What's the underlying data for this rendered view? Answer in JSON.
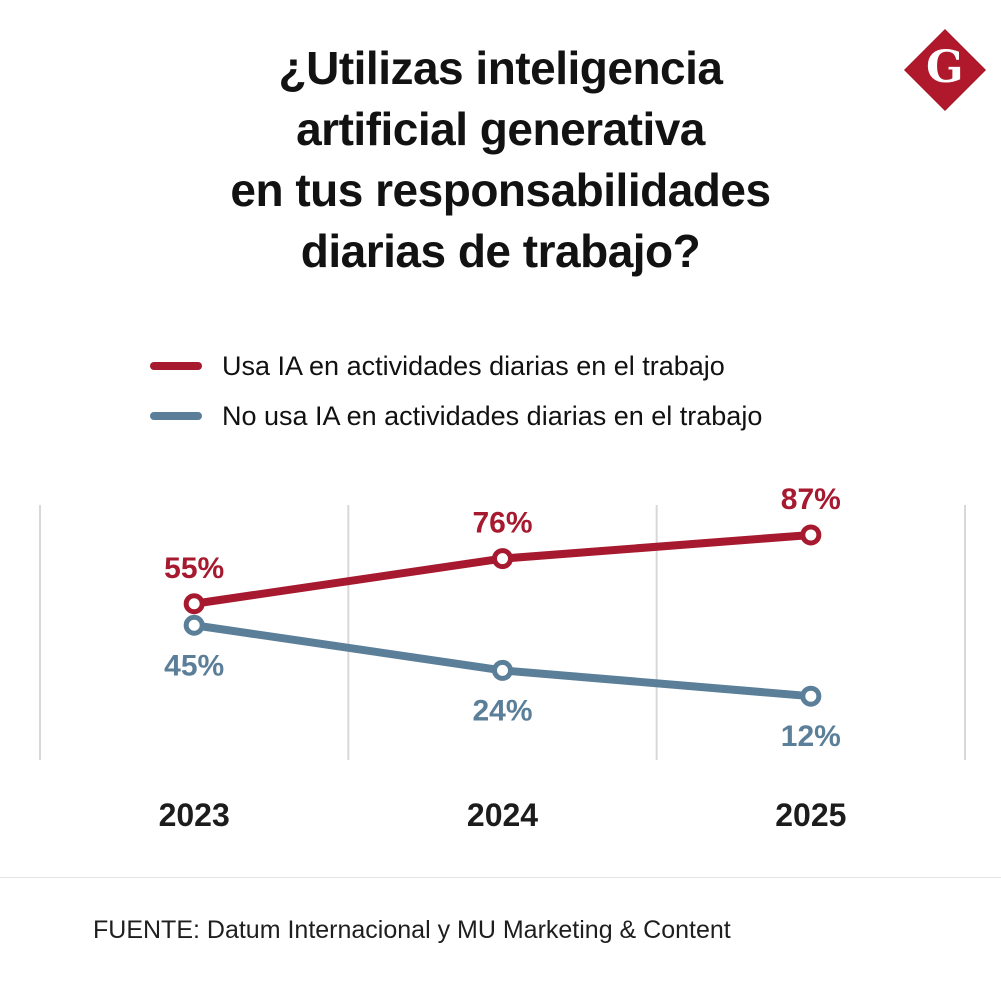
{
  "logo": {
    "letter": "G",
    "color": "#B0192B"
  },
  "title": "¿Utilizas inteligencia\nartificial generativa\nen tus responsabilidades\ndiarias de trabajo?",
  "source": "FUENTE: Datum Internacional y MU Marketing & Content",
  "chart_data": {
    "type": "line",
    "title": "¿Utilizas inteligencia artificial generativa en tus responsabilidades diarias de trabajo?",
    "categories": [
      "2023",
      "2024",
      "2025"
    ],
    "series": [
      {
        "name": "Usa IA en actividades diarias en el trabajo",
        "color": "#A6192E",
        "values": [
          55,
          76,
          87
        ],
        "labels": [
          "55%",
          "76%",
          "87%"
        ]
      },
      {
        "name": "No usa IA en actividades diarias en el trabajo",
        "color": "#5C7F99",
        "values": [
          45,
          24,
          12
        ],
        "labels": [
          "45%",
          "24%",
          "12%"
        ]
      }
    ],
    "xlabel": "",
    "ylabel": "",
    "ylim": [
      0,
      100
    ],
    "value_suffix": "%",
    "grid": "vertical",
    "legend_position": "top-left",
    "marker": "open-circle"
  }
}
